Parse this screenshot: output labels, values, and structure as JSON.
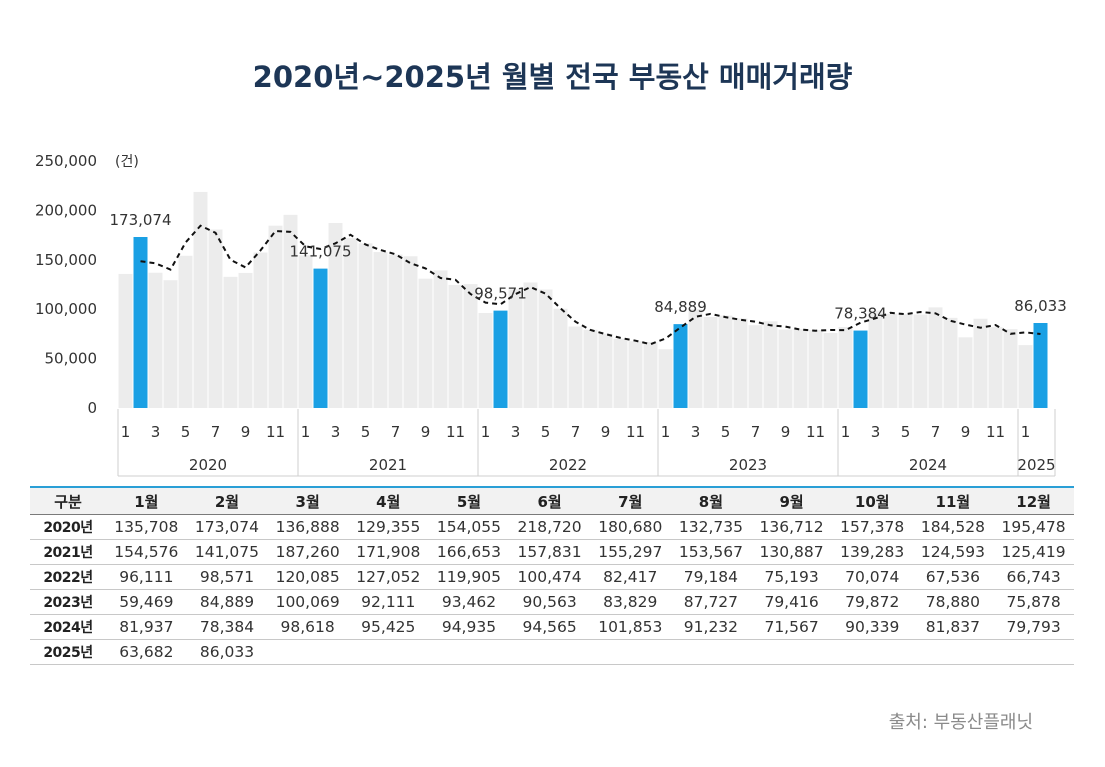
{
  "title": "2020년~2025년 월별 전국 부동산 매매거래량",
  "source": "출처: 부동산플래닛",
  "colors": {
    "highlight": "#1aa0e4",
    "bar": "#ececec",
    "title": "#1d3656",
    "table_accent": "#2a9fd6"
  },
  "chart_data": {
    "type": "bar",
    "unit": "(건)",
    "ylim": [
      0,
      250000
    ],
    "yticks": [
      0,
      50000,
      100000,
      150000,
      200000,
      250000
    ],
    "ytick_labels": [
      "0",
      "50,000",
      "100,000",
      "150,000",
      "200,000",
      "250,000"
    ],
    "xtick_labels": [
      "1",
      "3",
      "5",
      "7",
      "9",
      "11"
    ],
    "years": [
      {
        "label": "2020",
        "values": [
          135708,
          173074,
          136888,
          129355,
          154055,
          218720,
          180680,
          132735,
          136712,
          157378,
          184528,
          195478
        ]
      },
      {
        "label": "2021",
        "values": [
          154576,
          141075,
          187260,
          171908,
          166653,
          157831,
          155297,
          153567,
          130887,
          139283,
          124593,
          125419
        ]
      },
      {
        "label": "2022",
        "values": [
          96111,
          98571,
          120085,
          127052,
          119905,
          100474,
          82417,
          79184,
          75193,
          70074,
          67536,
          66743
        ]
      },
      {
        "label": "2023",
        "values": [
          59469,
          84889,
          100069,
          92111,
          93462,
          90563,
          83829,
          87727,
          79416,
          79872,
          78880,
          75878
        ]
      },
      {
        "label": "2024",
        "values": [
          81937,
          78384,
          98618,
          95425,
          94935,
          94565,
          101853,
          91232,
          71567,
          90339,
          81837,
          79793
        ]
      },
      {
        "label": "2025",
        "values": [
          63682,
          86033
        ],
        "xtick_labels": [
          "1"
        ]
      }
    ],
    "highlight_month": 2,
    "annotations": [
      {
        "year": "2020",
        "month": 2,
        "label": "173,074"
      },
      {
        "year": "2021",
        "month": 2,
        "label": "141,075"
      },
      {
        "year": "2022",
        "month": 2,
        "label": "98,571"
      },
      {
        "year": "2023",
        "month": 2,
        "label": "84,889"
      },
      {
        "year": "2024",
        "month": 2,
        "label": "78,384"
      },
      {
        "year": "2025",
        "month": 2,
        "label": "86,033"
      }
    ],
    "trend_line": "3-month moving average (dashed)"
  },
  "table": {
    "header": [
      "구분",
      "1월",
      "2월",
      "3월",
      "4월",
      "5월",
      "6월",
      "7월",
      "8월",
      "9월",
      "10월",
      "11월",
      "12월"
    ],
    "rows": [
      [
        "2020년",
        "135,708",
        "173,074",
        "136,888",
        "129,355",
        "154,055",
        "218,720",
        "180,680",
        "132,735",
        "136,712",
        "157,378",
        "184,528",
        "195,478"
      ],
      [
        "2021년",
        "154,576",
        "141,075",
        "187,260",
        "171,908",
        "166,653",
        "157,831",
        "155,297",
        "153,567",
        "130,887",
        "139,283",
        "124,593",
        "125,419"
      ],
      [
        "2022년",
        "96,111",
        "98,571",
        "120,085",
        "127,052",
        "119,905",
        "100,474",
        "82,417",
        "79,184",
        "75,193",
        "70,074",
        "67,536",
        "66,743"
      ],
      [
        "2023년",
        "59,469",
        "84,889",
        "100,069",
        "92,111",
        "93,462",
        "90,563",
        "83,829",
        "87,727",
        "79,416",
        "79,872",
        "78,880",
        "75,878"
      ],
      [
        "2024년",
        "81,937",
        "78,384",
        "98,618",
        "95,425",
        "94,935",
        "94,565",
        "101,853",
        "91,232",
        "71,567",
        "90,339",
        "81,837",
        "79,793"
      ],
      [
        "2025년",
        "63,682",
        "86,033",
        "",
        "",
        "",
        "",
        "",
        "",
        "",
        "",
        "",
        ""
      ]
    ]
  }
}
